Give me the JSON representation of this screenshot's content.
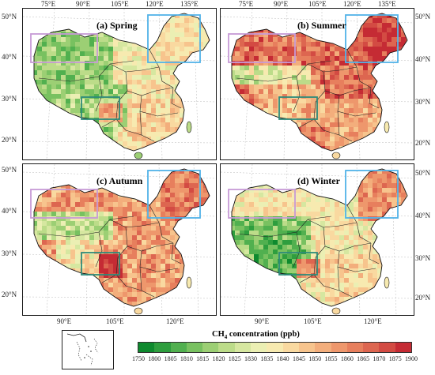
{
  "panels": [
    {
      "id": "spring",
      "title": "(a) Spring",
      "mode": "spring"
    },
    {
      "id": "summer",
      "title": "(b) Summer",
      "mode": "summer"
    },
    {
      "id": "autumn",
      "title": "(c) Autumn",
      "mode": "autumn"
    },
    {
      "id": "winter",
      "title": "(d) Winter",
      "mode": "winter"
    }
  ],
  "axes": {
    "top_lon": [
      "75°E",
      "90°E",
      "105°E",
      "120°E",
      "135°E"
    ],
    "bottom_lon": [
      "90°E",
      "105°E",
      "120°E"
    ],
    "lat": [
      "50°N",
      "40°N",
      "30°N",
      "20°N"
    ]
  },
  "legend": {
    "title_main": "CH",
    "title_sub": "4",
    "title_rest": " concentration  (ppb)",
    "ticks": [
      "1750",
      "1800",
      "1805",
      "1810",
      "1815",
      "1820",
      "1825",
      "1830",
      "1835",
      "1840",
      "1845",
      "1850",
      "1855",
      "1860",
      "1865",
      "1870",
      "1875",
      "1900"
    ],
    "colors": [
      "#0e8a2e",
      "#2e9e3e",
      "#51b04f",
      "#78c160",
      "#9ccf74",
      "#bcdc89",
      "#d6e7a0",
      "#ebefb3",
      "#f7eab0",
      "#f9d9a0",
      "#f7c48d",
      "#f3ae7c",
      "#ee976c",
      "#e77f5d",
      "#dd6650",
      "#d34b43",
      "#c52b34"
    ]
  },
  "boxes": {
    "violet": "#c79ad6",
    "blue": "#52b3e8",
    "teal": "#2e8b7a"
  }
}
